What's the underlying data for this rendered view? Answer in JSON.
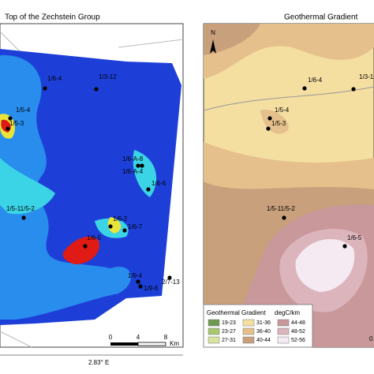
{
  "left_panel": {
    "title": "Top of the Zechstein Group",
    "wells": [
      "1/6-4",
      "1/3-12",
      "1/5-4",
      "1/5-3",
      "1/6-A-8",
      "1/6-A-4",
      "1/6-6",
      "1/5-11/5-2",
      "1/6-2",
      "1/6-7",
      "1/6-5",
      "1/9-4",
      "1/9-6",
      "2/7-13"
    ],
    "scale_bar": {
      "labels": [
        "0",
        "4",
        "8"
      ],
      "unit": "Km"
    },
    "longitude_label": "2.83° E"
  },
  "right_panel": {
    "title": "Geothermal Gradient",
    "north": "N",
    "wells": [
      "1/6-4",
      "1/3-1",
      "1/5-4",
      "1/5-3",
      "1/5-11/5-2",
      "1/6-5"
    ],
    "corner_label": "0",
    "legend": {
      "title": "Geothermal Gradient",
      "unit": "degC/km",
      "classes": [
        {
          "label": "19-23",
          "color": "#6e9a52"
        },
        {
          "label": "23-27",
          "color": "#a8c76e"
        },
        {
          "label": "27-31",
          "color": "#d9e4a0"
        },
        {
          "label": "31-36",
          "color": "#f4dea0"
        },
        {
          "label": "36-40",
          "color": "#e5c08c"
        },
        {
          "label": "40-44",
          "color": "#c9a07c"
        },
        {
          "label": "44-48",
          "color": "#c8989a"
        },
        {
          "label": "48-52",
          "color": "#dcb4bc"
        },
        {
          "label": "52-56",
          "color": "#f5eaf2"
        }
      ]
    }
  }
}
